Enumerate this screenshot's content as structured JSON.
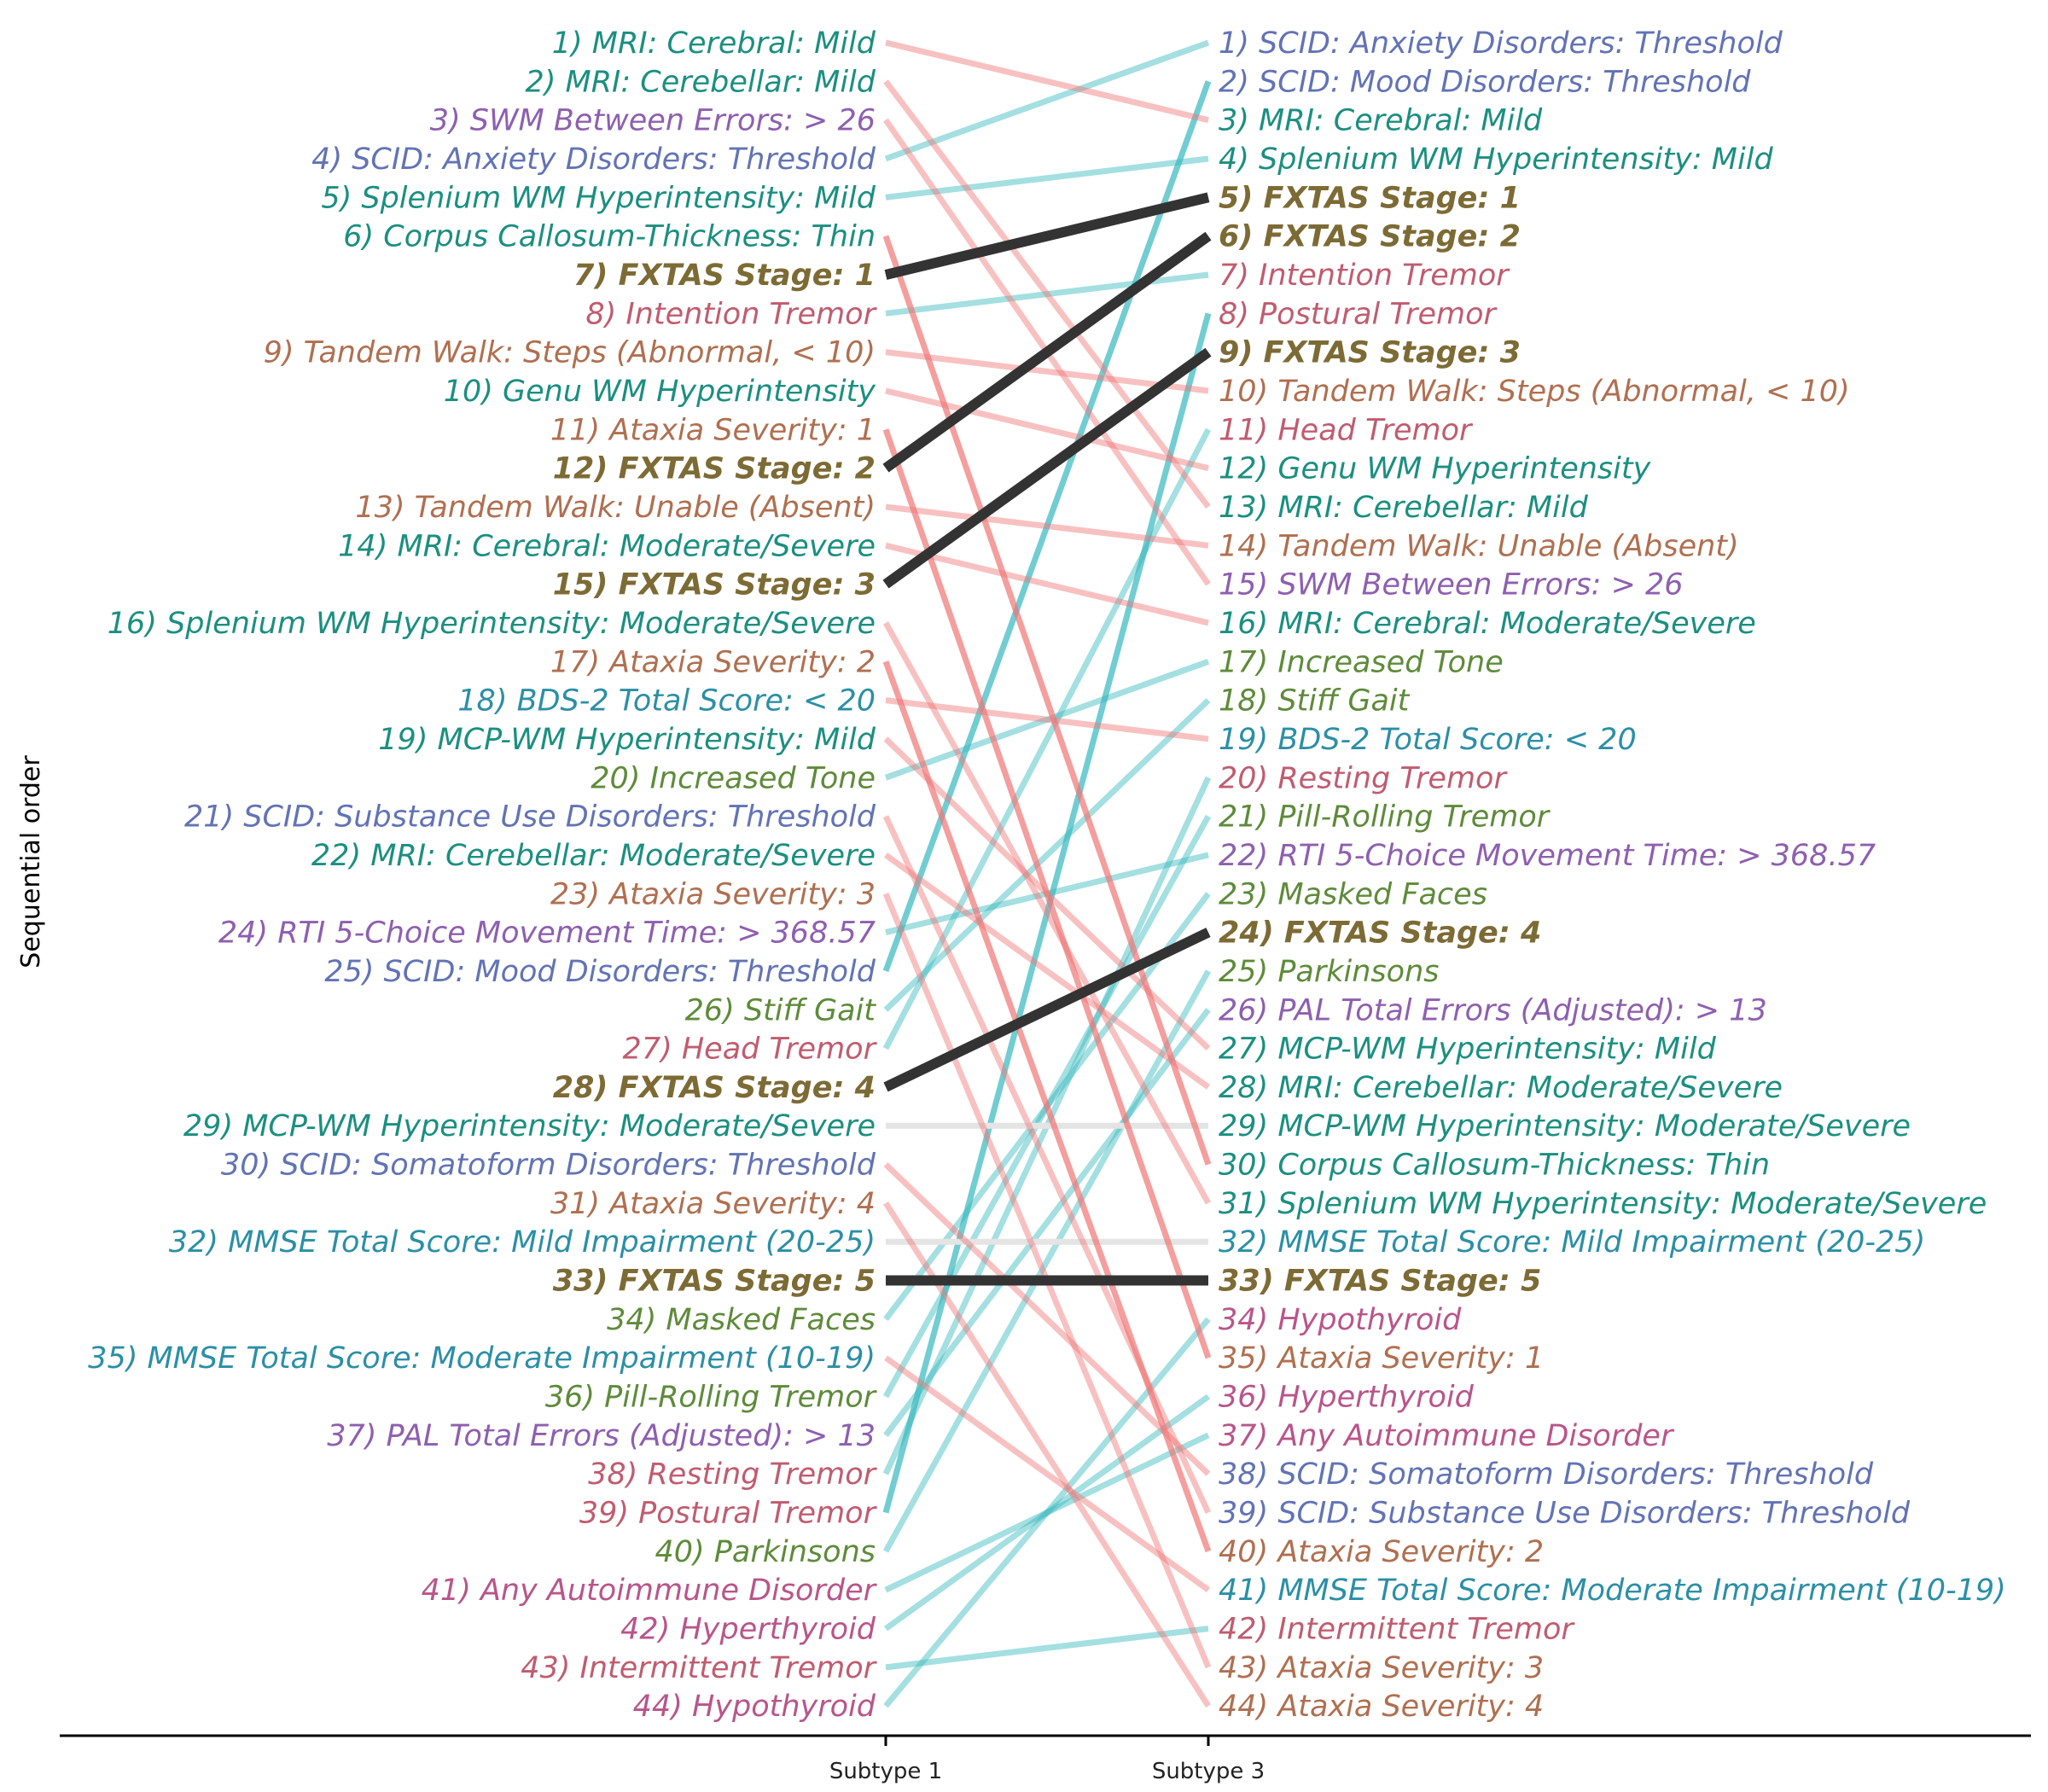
{
  "chart_data": {
    "type": "slope",
    "ylabel": "Sequential order",
    "columns": [
      "Subtype 1",
      "Subtype 3"
    ],
    "colors": {
      "stage": "#7d6b35",
      "stage_line": "#333333",
      "up_line": "#35b8bd",
      "down_line": "#f07575",
      "same_line": "#e4e4e4",
      "mri": "#1b8f80",
      "clinical": "#b06f50",
      "tremor": "#c05c70",
      "scid": "#6273b5",
      "cognitive": "#8e5fb0",
      "sdf": "#2b8fa6",
      "parkinson": "#5e8b3a",
      "thyroid": "#b9558a"
    },
    "left_labels": [
      {
        "text": "1) MRI: Cerebral: Mild",
        "cat": "mri"
      },
      {
        "text": "2) MRI: Cerebellar: Mild",
        "cat": "mri"
      },
      {
        "text": "3) SWM Between Errors: > 26",
        "cat": "cognitive"
      },
      {
        "text": "4) SCID: Anxiety Disorders: Threshold",
        "cat": "scid"
      },
      {
        "text": "5) Splenium WM Hyperintensity: Mild",
        "cat": "mri"
      },
      {
        "text": "6) Corpus Callosum-Thickness: Thin",
        "cat": "mri"
      },
      {
        "text": "7) FXTAS Stage: 1",
        "cat": "stage"
      },
      {
        "text": "8) Intention Tremor",
        "cat": "tremor"
      },
      {
        "text": "9) Tandem Walk: Steps (Abnormal, < 10)",
        "cat": "clinical"
      },
      {
        "text": "10) Genu WM Hyperintensity",
        "cat": "mri"
      },
      {
        "text": "11) Ataxia Severity: 1",
        "cat": "clinical"
      },
      {
        "text": "12) FXTAS Stage: 2",
        "cat": "stage"
      },
      {
        "text": "13) Tandem Walk: Unable (Absent)",
        "cat": "clinical"
      },
      {
        "text": "14) MRI: Cerebral: Moderate/Severe",
        "cat": "mri"
      },
      {
        "text": "15) FXTAS Stage: 3",
        "cat": "stage"
      },
      {
        "text": "16) Splenium WM Hyperintensity: Moderate/Severe",
        "cat": "mri"
      },
      {
        "text": "17) Ataxia Severity: 2",
        "cat": "clinical"
      },
      {
        "text": "18) BDS-2 Total Score: < 20",
        "cat": "sdf"
      },
      {
        "text": "19) MCP-WM Hyperintensity: Mild",
        "cat": "mri"
      },
      {
        "text": "20) Increased Tone",
        "cat": "parkinson"
      },
      {
        "text": "21) SCID: Substance Use Disorders: Threshold",
        "cat": "scid"
      },
      {
        "text": "22) MRI: Cerebellar: Moderate/Severe",
        "cat": "mri"
      },
      {
        "text": "23) Ataxia Severity: 3",
        "cat": "clinical"
      },
      {
        "text": "24) RTI 5-Choice Movement Time: > 368.57",
        "cat": "cognitive"
      },
      {
        "text": "25) SCID: Mood Disorders: Threshold",
        "cat": "scid"
      },
      {
        "text": "26) Stiff Gait",
        "cat": "parkinson"
      },
      {
        "text": "27) Head Tremor",
        "cat": "tremor"
      },
      {
        "text": "28) FXTAS Stage: 4",
        "cat": "stage"
      },
      {
        "text": "29) MCP-WM Hyperintensity: Moderate/Severe",
        "cat": "mri"
      },
      {
        "text": "30) SCID: Somatoform Disorders: Threshold",
        "cat": "scid"
      },
      {
        "text": "31) Ataxia Severity: 4",
        "cat": "clinical"
      },
      {
        "text": "32) MMSE Total Score: Mild Impairment (20-25)",
        "cat": "sdf"
      },
      {
        "text": "33) FXTAS Stage: 5",
        "cat": "stage"
      },
      {
        "text": "34) Masked Faces",
        "cat": "parkinson"
      },
      {
        "text": "35) MMSE Total Score: Moderate Impairment (10-19)",
        "cat": "sdf"
      },
      {
        "text": "36) Pill-Rolling Tremor",
        "cat": "parkinson"
      },
      {
        "text": "37) PAL Total Errors (Adjusted): > 13",
        "cat": "cognitive"
      },
      {
        "text": "38) Resting Tremor",
        "cat": "tremor"
      },
      {
        "text": "39) Postural Tremor",
        "cat": "tremor"
      },
      {
        "text": "40) Parkinsons",
        "cat": "parkinson"
      },
      {
        "text": "41) Any Autoimmune Disorder",
        "cat": "thyroid"
      },
      {
        "text": "42) Hyperthyroid",
        "cat": "thyroid"
      },
      {
        "text": "43) Intermittent Tremor",
        "cat": "tremor"
      },
      {
        "text": "44) Hypothyroid",
        "cat": "thyroid"
      }
    ],
    "right_labels": [
      {
        "text": "1) SCID: Anxiety Disorders: Threshold",
        "cat": "scid"
      },
      {
        "text": "2) SCID: Mood Disorders: Threshold",
        "cat": "scid"
      },
      {
        "text": "3) MRI: Cerebral: Mild",
        "cat": "mri"
      },
      {
        "text": "4) Splenium WM Hyperintensity: Mild",
        "cat": "mri"
      },
      {
        "text": "5) FXTAS Stage: 1",
        "cat": "stage"
      },
      {
        "text": "6) FXTAS Stage: 2",
        "cat": "stage"
      },
      {
        "text": "7) Intention Tremor",
        "cat": "tremor"
      },
      {
        "text": "8) Postural Tremor",
        "cat": "tremor"
      },
      {
        "text": "9) FXTAS Stage: 3",
        "cat": "stage"
      },
      {
        "text": "10) Tandem Walk: Steps (Abnormal, < 10)",
        "cat": "clinical"
      },
      {
        "text": "11) Head Tremor",
        "cat": "tremor"
      },
      {
        "text": "12) Genu WM Hyperintensity",
        "cat": "mri"
      },
      {
        "text": "13) MRI: Cerebellar: Mild",
        "cat": "mri"
      },
      {
        "text": "14) Tandem Walk: Unable (Absent)",
        "cat": "clinical"
      },
      {
        "text": "15) SWM Between Errors: > 26",
        "cat": "cognitive"
      },
      {
        "text": "16) MRI: Cerebral: Moderate/Severe",
        "cat": "mri"
      },
      {
        "text": "17) Increased Tone",
        "cat": "parkinson"
      },
      {
        "text": "18) Stiff Gait",
        "cat": "parkinson"
      },
      {
        "text": "19) BDS-2 Total Score: < 20",
        "cat": "sdf"
      },
      {
        "text": "20) Resting Tremor",
        "cat": "tremor"
      },
      {
        "text": "21) Pill-Rolling Tremor",
        "cat": "parkinson"
      },
      {
        "text": "22) RTI 5-Choice Movement Time: > 368.57",
        "cat": "cognitive"
      },
      {
        "text": "23) Masked Faces",
        "cat": "parkinson"
      },
      {
        "text": "24) FXTAS Stage: 4",
        "cat": "stage"
      },
      {
        "text": "25) Parkinsons",
        "cat": "parkinson"
      },
      {
        "text": "26) PAL Total Errors (Adjusted): > 13",
        "cat": "cognitive"
      },
      {
        "text": "27) MCP-WM Hyperintensity: Mild",
        "cat": "mri"
      },
      {
        "text": "28) MRI: Cerebellar: Moderate/Severe",
        "cat": "mri"
      },
      {
        "text": "29) MCP-WM Hyperintensity: Moderate/Severe",
        "cat": "mri"
      },
      {
        "text": "30) Corpus Callosum-Thickness: Thin",
        "cat": "mri"
      },
      {
        "text": "31) Splenium WM Hyperintensity: Moderate/Severe",
        "cat": "mri"
      },
      {
        "text": "32) MMSE Total Score: Mild Impairment (20-25)",
        "cat": "sdf"
      },
      {
        "text": "33) FXTAS Stage: 5",
        "cat": "stage"
      },
      {
        "text": "34) Hypothyroid",
        "cat": "thyroid"
      },
      {
        "text": "35) Ataxia Severity: 1",
        "cat": "clinical"
      },
      {
        "text": "36) Hyperthyroid",
        "cat": "thyroid"
      },
      {
        "text": "37) Any Autoimmune Disorder",
        "cat": "thyroid"
      },
      {
        "text": "38) SCID: Somatoform Disorders: Threshold",
        "cat": "scid"
      },
      {
        "text": "39) SCID: Substance Use Disorders: Threshold",
        "cat": "scid"
      },
      {
        "text": "40) Ataxia Severity: 2",
        "cat": "clinical"
      },
      {
        "text": "41) MMSE Total Score: Moderate Impairment (10-19)",
        "cat": "sdf"
      },
      {
        "text": "42) Intermittent Tremor",
        "cat": "tremor"
      },
      {
        "text": "43) Ataxia Severity: 3",
        "cat": "clinical"
      },
      {
        "text": "44) Ataxia Severity: 4",
        "cat": "clinical"
      }
    ],
    "links": [
      {
        "from": 1,
        "to": 3
      },
      {
        "from": 2,
        "to": 13
      },
      {
        "from": 3,
        "to": 15
      },
      {
        "from": 4,
        "to": 1
      },
      {
        "from": 5,
        "to": 4
      },
      {
        "from": 6,
        "to": 30
      },
      {
        "from": 7,
        "to": 5
      },
      {
        "from": 8,
        "to": 7
      },
      {
        "from": 9,
        "to": 10
      },
      {
        "from": 10,
        "to": 12
      },
      {
        "from": 11,
        "to": 35
      },
      {
        "from": 12,
        "to": 6
      },
      {
        "from": 13,
        "to": 14
      },
      {
        "from": 14,
        "to": 16
      },
      {
        "from": 15,
        "to": 9
      },
      {
        "from": 16,
        "to": 31
      },
      {
        "from": 17,
        "to": 40
      },
      {
        "from": 18,
        "to": 19
      },
      {
        "from": 19,
        "to": 27
      },
      {
        "from": 20,
        "to": 17
      },
      {
        "from": 21,
        "to": 39
      },
      {
        "from": 22,
        "to": 28
      },
      {
        "from": 23,
        "to": 43
      },
      {
        "from": 24,
        "to": 22
      },
      {
        "from": 25,
        "to": 2
      },
      {
        "from": 26,
        "to": 18
      },
      {
        "from": 27,
        "to": 11
      },
      {
        "from": 28,
        "to": 24
      },
      {
        "from": 29,
        "to": 29
      },
      {
        "from": 30,
        "to": 38
      },
      {
        "from": 31,
        "to": 44
      },
      {
        "from": 32,
        "to": 32
      },
      {
        "from": 33,
        "to": 33
      },
      {
        "from": 34,
        "to": 23
      },
      {
        "from": 35,
        "to": 41
      },
      {
        "from": 36,
        "to": 21
      },
      {
        "from": 37,
        "to": 26
      },
      {
        "from": 38,
        "to": 20
      },
      {
        "from": 39,
        "to": 8
      },
      {
        "from": 40,
        "to": 25
      },
      {
        "from": 41,
        "to": 37
      },
      {
        "from": 42,
        "to": 36
      },
      {
        "from": 43,
        "to": 42
      },
      {
        "from": 44,
        "to": 34
      }
    ]
  }
}
